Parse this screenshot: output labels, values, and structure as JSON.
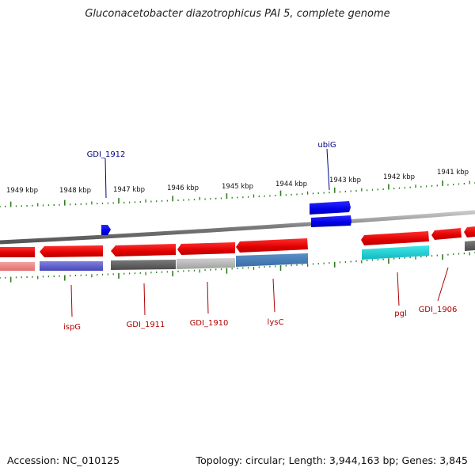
{
  "title": "Gluconacetobacter diazotrophicus PAI 5, complete genome",
  "footer": {
    "accession": "Accession: NC_010125",
    "summary": "Topology: circular; Length: 3,944,163 bp; Genes: 3,845"
  },
  "colors": {
    "backbone": "#8a8a8a",
    "tick": "#2e7d1e",
    "forward_gene": "#0000ee",
    "reverse_gene": "#ee0000",
    "label_forward": "#00008b",
    "label_reverse": "#b00000"
  },
  "scale_labels": [
    "1949 kbp",
    "1948 kbp",
    "1947 kbp",
    "1946 kbp",
    "1945 kbp",
    "1944 kbp",
    "1943 kbp",
    "1942 kbp",
    "1941 kbp"
  ],
  "gene_labels_top": [
    "GDI_1912",
    "ubiG"
  ],
  "gene_labels_bottom": [
    "ispG",
    "GDI_1911",
    "GDI_1910",
    "lysC",
    "pgl",
    "GDI_1906"
  ]
}
